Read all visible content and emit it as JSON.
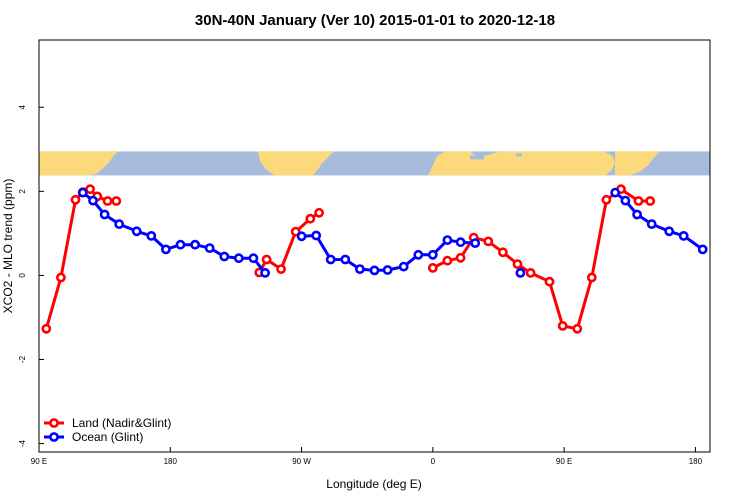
{
  "chart_data": {
    "type": "line",
    "title": "30N-40N January (Ver 10)   2015-01-01 to 2020-12-18",
    "xlabel": "Longitude (deg E)",
    "ylabel": "XCO2 - MLO trend (ppm)",
    "xlim": [
      0,
      460
    ],
    "ylim": [
      -4.2,
      5.6
    ],
    "xticks": [
      {
        "value": 0,
        "label": "90 E"
      },
      {
        "value": 90,
        "label": "180"
      },
      {
        "value": 180,
        "label": "90 W"
      },
      {
        "value": 270,
        "label": "0"
      },
      {
        "value": 360,
        "label": "90 E"
      },
      {
        "value": 450,
        "label": "180"
      }
    ],
    "yticks": [
      {
        "value": -4,
        "label": "-4"
      },
      {
        "value": -2,
        "label": "-2"
      },
      {
        "value": 0,
        "label": "0"
      },
      {
        "value": 2,
        "label": "2"
      },
      {
        "value": 4,
        "label": "4"
      }
    ],
    "map_strip": {
      "y_range": [
        2.35,
        2.95
      ],
      "ocean_color": "#a7bbdc",
      "land_color": "#fcd97a"
    },
    "legend": {
      "position": "bottom-left"
    },
    "series": [
      {
        "name": "Land (Nadir&Glint)",
        "color": "#ff0000",
        "segments": [
          [
            [
              5,
              -1.27
            ],
            [
              15,
              -0.05
            ],
            [
              25,
              1.8
            ],
            [
              30,
              1.98
            ],
            [
              35,
              2.05
            ],
            [
              40,
              1.88
            ],
            [
              47,
              1.77
            ],
            [
              53,
              1.77
            ]
          ],
          [
            [
              151,
              0.07
            ],
            [
              156,
              0.38
            ],
            [
              166,
              0.15
            ],
            [
              176,
              1.04
            ],
            [
              186,
              1.35
            ],
            [
              192,
              1.49
            ]
          ],
          [
            [
              270,
              0.18
            ],
            [
              280,
              0.35
            ],
            [
              289,
              0.42
            ],
            [
              298,
              0.9
            ],
            [
              308,
              0.81
            ],
            [
              318,
              0.55
            ],
            [
              328,
              0.27
            ],
            [
              337,
              0.06
            ],
            [
              350,
              -0.15
            ],
            [
              359,
              -1.2
            ],
            [
              369,
              -1.27
            ],
            [
              379,
              -0.05
            ],
            [
              389,
              1.8
            ],
            [
              399,
              2.05
            ],
            [
              411,
              1.77
            ],
            [
              419,
              1.77
            ]
          ]
        ]
      },
      {
        "name": "Ocean (Glint)",
        "color": "#0000ff",
        "segments": [
          [
            [
              30,
              1.97
            ],
            [
              37,
              1.78
            ],
            [
              45,
              1.45
            ],
            [
              55,
              1.22
            ],
            [
              67,
              1.05
            ],
            [
              77,
              0.94
            ],
            [
              87,
              0.62
            ],
            [
              97,
              0.73
            ],
            [
              107,
              0.73
            ],
            [
              117,
              0.65
            ],
            [
              127,
              0.45
            ],
            [
              137,
              0.41
            ],
            [
              147,
              0.41
            ],
            [
              155,
              0.06
            ]
          ],
          [
            [
              180,
              0.93
            ],
            [
              190,
              0.95
            ],
            [
              200,
              0.38
            ],
            [
              210,
              0.38
            ],
            [
              220,
              0.15
            ],
            [
              230,
              0.12
            ],
            [
              239,
              0.13
            ],
            [
              250,
              0.21
            ],
            [
              260,
              0.49
            ],
            [
              270,
              0.49
            ],
            [
              280,
              0.84
            ],
            [
              289,
              0.79
            ],
            [
              299,
              0.77
            ]
          ],
          [
            [
              330,
              0.06
            ]
          ],
          [
            [
              395,
              1.97
            ],
            [
              402,
              1.78
            ],
            [
              410,
              1.45
            ],
            [
              420,
              1.22
            ],
            [
              432,
              1.05
            ],
            [
              442,
              0.94
            ],
            [
              455,
              0.62
            ]
          ]
        ]
      }
    ]
  }
}
